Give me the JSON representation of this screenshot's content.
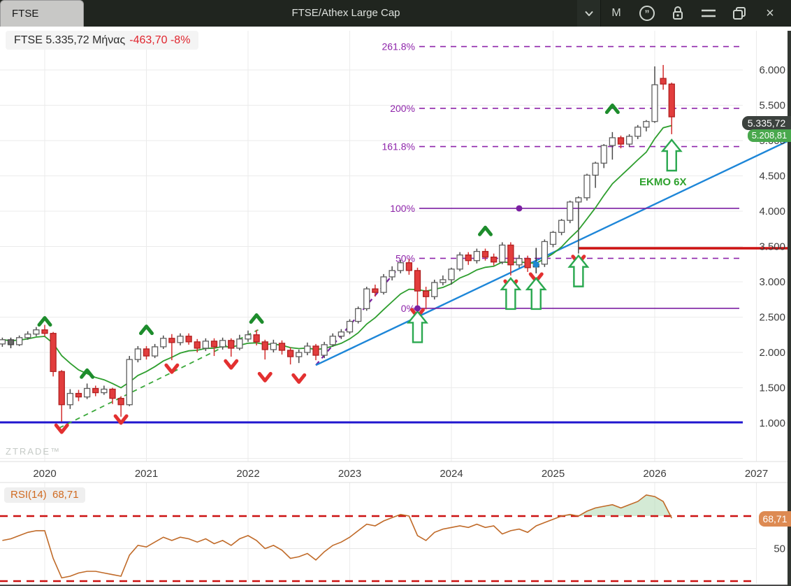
{
  "titlebar": {
    "tab_label": "FTSE",
    "title": "FTSE/Athex Large Cap",
    "icons": [
      {
        "name": "chevron-down-icon",
        "type": "chevron"
      },
      {
        "name": "interval-monthly-label",
        "type": "text",
        "glyph": "M"
      },
      {
        "name": "quotes-icon",
        "type": "quotes"
      },
      {
        "name": "lock-icon",
        "type": "lock"
      },
      {
        "name": "menu-icon",
        "type": "menu"
      },
      {
        "name": "restore-window-icon",
        "type": "windows"
      },
      {
        "name": "close-icon",
        "type": "text",
        "glyph": "×"
      }
    ]
  },
  "legend": {
    "text_main": "FTSE 5.335,72 Μήνας",
    "text_change": "-463,70 -8%"
  },
  "watermark": "ZTRADE™",
  "ema_label": "EKMO 6X",
  "price_axis": {
    "tick_values": [
      6000,
      5500,
      5000,
      4500,
      4000,
      3500,
      3000,
      2500,
      2000,
      1500,
      1000
    ],
    "tick_labels": [
      "6.000",
      "5.500",
      "5.000",
      "4.500",
      "4.000",
      "3.500",
      "3.000",
      "2.500",
      "2.000",
      "1.500",
      "1.000"
    ],
    "current_price_badge": "5.335,72",
    "ema_badge": "5.208,81"
  },
  "time_axis": {
    "years": [
      2020,
      2021,
      2022,
      2023,
      2024,
      2025,
      2026,
      2027
    ]
  },
  "rsi_panel": {
    "name_label": "RSI(14)",
    "value_label": "68,71",
    "axis_badge": "68,71",
    "mid_label": "50",
    "upper_level": 70,
    "lower_level": 30,
    "mid_level": 50
  },
  "fib": {
    "levels": [
      {
        "label": "261.8%",
        "price": 6331,
        "style": "dashed"
      },
      {
        "label": "200%",
        "price": 5456,
        "style": "dashed"
      },
      {
        "label": "161.8%",
        "price": 4915,
        "style": "dashed"
      },
      {
        "label": "100%",
        "price": 4040,
        "style": "solid"
      },
      {
        "label": "50%",
        "price": 3332,
        "style": "dashed"
      },
      {
        "label": "0%",
        "price": 2624,
        "style": "solid"
      }
    ]
  },
  "chart_data": {
    "type": "candlestick",
    "interval": "monthly",
    "start": "2019-08",
    "ylim": [
      460,
      6560
    ],
    "candles": [
      [
        2120,
        2210,
        2080,
        2180
      ],
      [
        2180,
        2210,
        2060,
        2110
      ],
      [
        2110,
        2240,
        2090,
        2210
      ],
      [
        2210,
        2300,
        2180,
        2260
      ],
      [
        2260,
        2360,
        2230,
        2320
      ],
      [
        2320,
        2390,
        2230,
        2270
      ],
      [
        2270,
        2290,
        1660,
        1730
      ],
      [
        1730,
        1750,
        1020,
        1260
      ],
      [
        1260,
        1480,
        1200,
        1420
      ],
      [
        1420,
        1470,
        1310,
        1370
      ],
      [
        1370,
        1560,
        1340,
        1490
      ],
      [
        1490,
        1530,
        1380,
        1430
      ],
      [
        1430,
        1530,
        1400,
        1480
      ],
      [
        1480,
        1500,
        1270,
        1350
      ],
      [
        1350,
        1380,
        1090,
        1260
      ],
      [
        1260,
        1950,
        1240,
        1900
      ],
      [
        1900,
        2090,
        1860,
        2050
      ],
      [
        2050,
        2090,
        1900,
        1950
      ],
      [
        1950,
        2120,
        1920,
        2080
      ],
      [
        2080,
        2240,
        2050,
        2200
      ],
      [
        2200,
        2260,
        1890,
        2140
      ],
      [
        2140,
        2270,
        2100,
        2230
      ],
      [
        2230,
        2270,
        2110,
        2150
      ],
      [
        2150,
        2190,
        2000,
        2060
      ],
      [
        2060,
        2200,
        2020,
        2160
      ],
      [
        2160,
        2200,
        1950,
        2080
      ],
      [
        2080,
        2210,
        2040,
        2170
      ],
      [
        2170,
        2200,
        1940,
        2060
      ],
      [
        2060,
        2250,
        2030,
        2190
      ],
      [
        2190,
        2310,
        2150,
        2250
      ],
      [
        2250,
        2320,
        2100,
        2150
      ],
      [
        2150,
        2180,
        1900,
        2040
      ],
      [
        2040,
        2180,
        2000,
        2130
      ],
      [
        2130,
        2170,
        1970,
        2030
      ],
      [
        2030,
        2070,
        1830,
        1940
      ],
      [
        1940,
        2040,
        1850,
        2000
      ],
      [
        2000,
        2140,
        1960,
        2090
      ],
      [
        2090,
        2120,
        1890,
        1960
      ],
      [
        1960,
        2150,
        1920,
        2110
      ],
      [
        2110,
        2270,
        2080,
        2230
      ],
      [
        2230,
        2330,
        2190,
        2290
      ],
      [
        2290,
        2470,
        2260,
        2440
      ],
      [
        2440,
        2650,
        2410,
        2620
      ],
      [
        2620,
        2930,
        2590,
        2900
      ],
      [
        2900,
        2960,
        2790,
        2850
      ],
      [
        2850,
        3110,
        2820,
        3070
      ],
      [
        3070,
        3220,
        3020,
        3160
      ],
      [
        3160,
        3310,
        3120,
        3270
      ],
      [
        3270,
        3320,
        3100,
        3160
      ],
      [
        3160,
        3200,
        2640,
        2870
      ],
      [
        2870,
        2930,
        2610,
        2790
      ],
      [
        2790,
        3030,
        2750,
        2990
      ],
      [
        2990,
        3090,
        2950,
        3030
      ],
      [
        3030,
        3200,
        2960,
        3180
      ],
      [
        3180,
        3420,
        3150,
        3380
      ],
      [
        3380,
        3420,
        3240,
        3300
      ],
      [
        3300,
        3470,
        3260,
        3430
      ],
      [
        3430,
        3470,
        3300,
        3350
      ],
      [
        3350,
        3400,
        3230,
        3280
      ],
      [
        3280,
        3560,
        3250,
        3520
      ],
      [
        3520,
        3560,
        3090,
        3240
      ],
      [
        3240,
        3380,
        3200,
        3330
      ],
      [
        3330,
        3370,
        3140,
        3200
      ],
      [
        3210,
        3480,
        3120,
        3250
      ],
      [
        3250,
        3600,
        3210,
        3570
      ],
      [
        3530,
        3720,
        3490,
        3700
      ],
      [
        3700,
        3890,
        3660,
        3870
      ],
      [
        3870,
        4150,
        3830,
        4130
      ],
      [
        4130,
        4210,
        3400,
        4190
      ],
      [
        4190,
        4530,
        4150,
        4510
      ],
      [
        4510,
        4700,
        4330,
        4680
      ],
      [
        4680,
        4950,
        4610,
        4930
      ],
      [
        4930,
        5120,
        4730,
        5040
      ],
      [
        5040,
        5070,
        4890,
        4950
      ],
      [
        4950,
        5090,
        4910,
        5060
      ],
      [
        5060,
        5220,
        5020,
        5190
      ],
      [
        5190,
        5290,
        5130,
        5270
      ],
      [
        5270,
        6050,
        5250,
        5790
      ],
      [
        5880,
        6070,
        5720,
        5800
      ],
      [
        5800,
        5820,
        5090,
        5336
      ]
    ],
    "dark_candles": [
      1,
      63
    ],
    "ema_period": 6,
    "rsi_period": 14,
    "rsi": [
      55,
      56,
      58,
      60,
      61,
      61,
      44,
      32,
      33,
      35,
      36,
      36,
      35,
      34,
      33,
      46,
      52,
      51,
      54,
      57,
      55,
      57,
      56,
      54,
      56,
      53,
      55,
      52,
      56,
      58,
      55,
      50,
      52,
      49,
      44,
      45,
      47,
      43,
      48,
      52,
      54,
      57,
      61,
      65,
      64,
      67,
      69,
      71,
      70,
      58,
      55,
      60,
      62,
      63,
      64,
      63,
      65,
      63,
      64,
      59,
      61,
      62,
      60,
      64,
      66,
      68,
      70,
      71,
      70,
      73,
      75,
      76,
      77,
      75,
      77,
      79,
      83,
      82,
      79,
      68.71
    ],
    "trendlines": [
      {
        "name": "support-trendline-blue",
        "color": "#1d86d8",
        "style": "solid",
        "width": 2.4,
        "from": {
          "i": 37,
          "price": 1820
        },
        "to": {
          "i": 93,
          "price": 5010
        }
      },
      {
        "name": "channel-trendline-purple",
        "color": "#7b1fa2",
        "style": "dashed",
        "width": 2.2,
        "from": {
          "i": 37,
          "price": 1820
        },
        "to": {
          "i": 47,
          "price": 3230
        }
      },
      {
        "name": "recovery-trendline-green",
        "color": "#3aa83a",
        "style": "dashed",
        "width": 1.8,
        "from": {
          "i": 6.7,
          "price": 930
        },
        "to": {
          "i": 30.2,
          "price": 2320
        }
      }
    ],
    "hlines": [
      {
        "name": "resistance-line-red",
        "color": "#cc1111",
        "price": 3475,
        "from_i": 68,
        "to_x": 1132,
        "width": 3.5
      },
      {
        "name": "support-line-navy",
        "color": "#2016cf",
        "price": 1010,
        "from_x": 0,
        "to_x": 1063,
        "width": 3
      }
    ],
    "markers": {
      "up_chevrons": [
        [
          5,
          2440
        ],
        [
          10,
          1700
        ],
        [
          17,
          2320
        ],
        [
          30,
          2480
        ],
        [
          57,
          3720
        ],
        [
          72,
          5450
        ]
      ],
      "down_chevrons": [
        [
          7,
          920
        ],
        [
          14,
          1050
        ],
        [
          20,
          1770
        ],
        [
          27,
          1830
        ],
        [
          31,
          1650
        ],
        [
          35,
          1630
        ],
        [
          49,
          2555
        ],
        [
          60,
          2960
        ],
        [
          63,
          3060
        ],
        [
          68,
          3310
        ]
      ],
      "up_arrows": [
        [
          49,
          2580
        ],
        [
          60,
          3050
        ],
        [
          63,
          3050
        ],
        [
          68,
          3370
        ],
        [
          79,
          5010
        ]
      ],
      "purple_dots": [
        [
          49,
          2624
        ],
        [
          61,
          4040
        ]
      ],
      "blue_dots": [
        [
          63,
          3245
        ]
      ]
    }
  }
}
